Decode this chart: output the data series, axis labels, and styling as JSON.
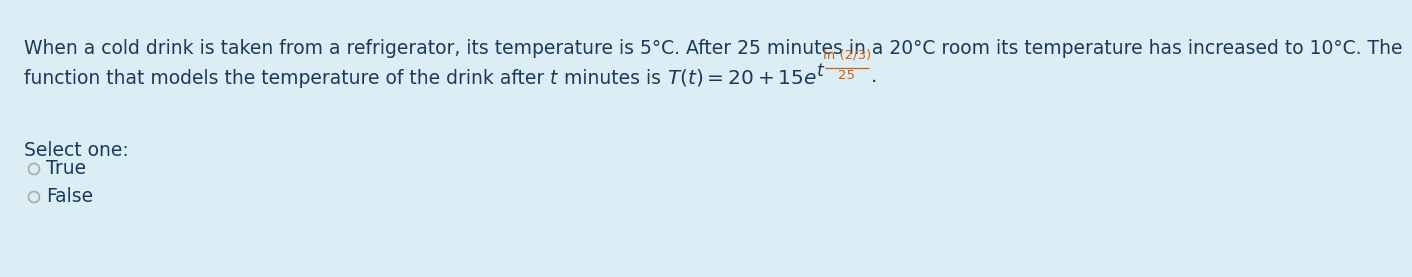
{
  "background_color": "#dceef5",
  "text_color": "#2a2a2a",
  "dark_blue": "#1a3a5c",
  "line1": "When a cold drink is taken from a refrigerator, its temperature is 5°C. After 25 minutes in a 20°C room its temperature has increased to 10°C. The",
  "line2_prefix": "function that models the temperature of the drink after ",
  "line2_italic_t": "t",
  "line2_mid": " minutes is ",
  "select_one": "Select one:",
  "option_true": "True",
  "option_false": "False",
  "font_size": 13.5,
  "formula_font_size": 14.5,
  "small_font_size": 9.5,
  "orange_color": "#d4600a",
  "circle_color": "#888888",
  "circle_edge": "#aaaaaa"
}
